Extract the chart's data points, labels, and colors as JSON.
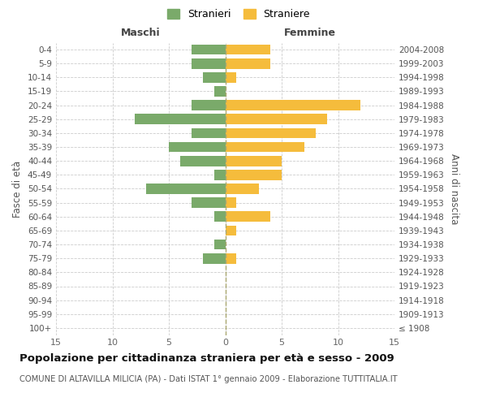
{
  "age_groups": [
    "0-4",
    "5-9",
    "10-14",
    "15-19",
    "20-24",
    "25-29",
    "30-34",
    "35-39",
    "40-44",
    "45-49",
    "50-54",
    "55-59",
    "60-64",
    "65-69",
    "70-74",
    "75-79",
    "80-84",
    "85-89",
    "90-94",
    "95-99",
    "100+"
  ],
  "birth_years": [
    "2004-2008",
    "1999-2003",
    "1994-1998",
    "1989-1993",
    "1984-1988",
    "1979-1983",
    "1974-1978",
    "1969-1973",
    "1964-1968",
    "1959-1963",
    "1954-1958",
    "1949-1953",
    "1944-1948",
    "1939-1943",
    "1934-1938",
    "1929-1933",
    "1924-1928",
    "1919-1923",
    "1914-1918",
    "1909-1913",
    "≤ 1908"
  ],
  "maschi": [
    3,
    3,
    2,
    1,
    3,
    8,
    3,
    5,
    4,
    1,
    7,
    3,
    1,
    0,
    1,
    2,
    0,
    0,
    0,
    0,
    0
  ],
  "femmine": [
    4,
    4,
    1,
    0,
    12,
    9,
    8,
    7,
    5,
    5,
    3,
    1,
    4,
    1,
    0,
    1,
    0,
    0,
    0,
    0,
    0
  ],
  "maschi_color": "#7aaa6a",
  "femmine_color": "#f5bc3c",
  "background_color": "#ffffff",
  "grid_color": "#cccccc",
  "title": "Popolazione per cittadinanza straniera per età e sesso - 2009",
  "subtitle": "COMUNE DI ALTAVILLA MILICIA (PA) - Dati ISTAT 1° gennaio 2009 - Elaborazione TUTTITALIA.IT",
  "ylabel_left": "Fasce di età",
  "ylabel_right": "Anni di nascita",
  "xlabel_maschi": "Maschi",
  "xlabel_femmine": "Femmine",
  "legend_stranieri": "Stranieri",
  "legend_straniere": "Straniere",
  "xlim": 15
}
